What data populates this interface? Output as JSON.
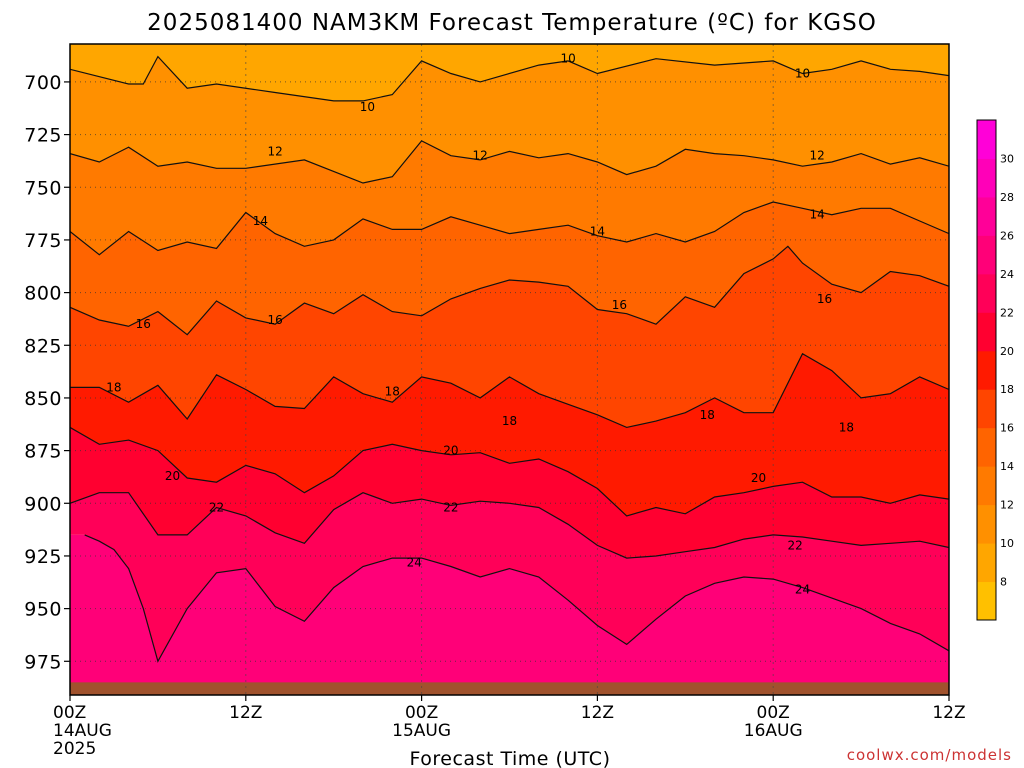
{
  "chart_data": {
    "type": "heatmap",
    "title": "2025081400 NAM3KM Forecast Temperature (ºC) for KGSO",
    "xlabel": "Forecast Time (UTC)",
    "ylabel": "",
    "watermark": "coolwx.com/models",
    "x_ticks": [
      {
        "hour": 0,
        "label": "00Z",
        "sub": "14AUG",
        "sub2": "2025"
      },
      {
        "hour": 12,
        "label": "12Z",
        "sub": "",
        "sub2": ""
      },
      {
        "hour": 24,
        "label": "00Z",
        "sub": "15AUG",
        "sub2": ""
      },
      {
        "hour": 36,
        "label": "12Z",
        "sub": "",
        "sub2": ""
      },
      {
        "hour": 48,
        "label": "00Z",
        "sub": "16AUG",
        "sub2": ""
      },
      {
        "hour": 60,
        "label": "12Z",
        "sub": "",
        "sub2": ""
      }
    ],
    "xlim": [
      0,
      60
    ],
    "y_ticks": [
      700,
      725,
      750,
      775,
      800,
      825,
      850,
      875,
      900,
      925,
      950,
      975
    ],
    "ylim": [
      682,
      991
    ],
    "y_axis_inverted": true,
    "grid": "dotted",
    "ground_color": "#A0522D",
    "colorbar": {
      "placement": "right",
      "bins": [
        {
          "min": 6,
          "max": 8,
          "color": "#FFC000"
        },
        {
          "min": 8,
          "max": 10,
          "color": "#FFA600"
        },
        {
          "min": 10,
          "max": 12,
          "color": "#FF9000"
        },
        {
          "min": 12,
          "max": 14,
          "color": "#FF7A00"
        },
        {
          "min": 14,
          "max": 16,
          "color": "#FF6400"
        },
        {
          "min": 16,
          "max": 18,
          "color": "#FF4500"
        },
        {
          "min": 18,
          "max": 20,
          "color": "#FF1A00"
        },
        {
          "min": 20,
          "max": 22,
          "color": "#FF0030"
        },
        {
          "min": 22,
          "max": 24,
          "color": "#FF0058"
        },
        {
          "min": 24,
          "max": 26,
          "color": "#FF0078"
        },
        {
          "min": 26,
          "max": 28,
          "color": "#FF0098"
        },
        {
          "min": 28,
          "max": 30,
          "color": "#FF00B8"
        },
        {
          "min": 30,
          "max": 32,
          "color": "#FF00D8"
        }
      ],
      "tick_labels": [
        "8",
        "10",
        "12",
        "14",
        "16",
        "18",
        "20",
        "22",
        "24",
        "26",
        "28",
        "30"
      ]
    },
    "contours": [
      {
        "level": 10,
        "hours": [
          0,
          4,
          5,
          6,
          8,
          10,
          14,
          18,
          20,
          22,
          24,
          26,
          28,
          32,
          34,
          36,
          40,
          44,
          48,
          50,
          52,
          54,
          56,
          58,
          60
        ],
        "pressures": [
          694,
          701,
          701,
          688,
          703,
          701,
          705,
          709,
          709,
          706,
          690,
          696,
          700,
          692,
          690,
          696,
          689,
          692,
          690,
          696,
          694,
          690,
          694,
          695,
          697
        ],
        "labels": [
          [
            20.3,
            712
          ],
          [
            34,
            689
          ],
          [
            50,
            696
          ]
        ]
      },
      {
        "level": 12,
        "hours": [
          0,
          2,
          4,
          6,
          8,
          10,
          12,
          16,
          20,
          22,
          24,
          26,
          28,
          30,
          32,
          34,
          36,
          38,
          40,
          42,
          44,
          46,
          48,
          50,
          52,
          54,
          56,
          58,
          60
        ],
        "pressures": [
          734,
          738,
          731,
          740,
          738,
          741,
          741,
          737,
          748,
          745,
          728,
          735,
          737,
          733,
          736,
          734,
          738,
          744,
          740,
          732,
          734,
          735,
          737,
          740,
          738,
          734,
          739,
          736,
          740
        ],
        "labels": [
          [
            14,
            733
          ],
          [
            28,
            735
          ],
          [
            51,
            735
          ]
        ]
      },
      {
        "level": 14,
        "hours": [
          0,
          2,
          4,
          6,
          8,
          10,
          12,
          14,
          16,
          18,
          20,
          22,
          24,
          26,
          28,
          30,
          32,
          34,
          36,
          38,
          40,
          42,
          44,
          46,
          48,
          50,
          52,
          54,
          56,
          58,
          60
        ],
        "pressures": [
          771,
          782,
          771,
          780,
          776,
          779,
          762,
          772,
          778,
          775,
          765,
          770,
          770,
          764,
          768,
          772,
          770,
          768,
          773,
          776,
          772,
          776,
          771,
          762,
          757,
          760,
          763,
          760,
          760,
          766,
          772
        ],
        "labels": [
          [
            13,
            766
          ],
          [
            36,
            771
          ],
          [
            51,
            763
          ]
        ]
      },
      {
        "level": 16,
        "hours": [
          0,
          2,
          4,
          6,
          8,
          10,
          12,
          14,
          16,
          18,
          20,
          22,
          24,
          26,
          28,
          30,
          32,
          34,
          36,
          38,
          40,
          42,
          44,
          46,
          48,
          49,
          50,
          52,
          54,
          56,
          58,
          60
        ],
        "pressures": [
          807,
          813,
          816,
          809,
          820,
          804,
          812,
          815,
          805,
          810,
          801,
          809,
          811,
          803,
          798,
          794,
          795,
          797,
          808,
          810,
          815,
          802,
          807,
          791,
          784,
          778,
          786,
          796,
          800,
          790,
          792,
          797
        ],
        "labels": [
          [
            5,
            815
          ],
          [
            14,
            813
          ],
          [
            37.5,
            806
          ],
          [
            51.5,
            803
          ]
        ]
      },
      {
        "level": 18,
        "hours": [
          0,
          2,
          4,
          6,
          8,
          10,
          12,
          14,
          16,
          18,
          20,
          22,
          24,
          26,
          28,
          30,
          32,
          34,
          36,
          38,
          40,
          42,
          44,
          46,
          48,
          50,
          52,
          54,
          56,
          58,
          60
        ],
        "pressures": [
          845,
          845,
          852,
          844,
          860,
          839,
          846,
          854,
          855,
          840,
          848,
          852,
          840,
          843,
          850,
          840,
          848,
          853,
          858,
          864,
          861,
          857,
          850,
          857,
          857,
          829,
          837,
          850,
          848,
          840,
          846
        ],
        "labels": [
          [
            3,
            845
          ],
          [
            22,
            847
          ],
          [
            30,
            861
          ],
          [
            43.5,
            858
          ],
          [
            53,
            864
          ]
        ]
      },
      {
        "level": 20,
        "hours": [
          0,
          2,
          4,
          6,
          8,
          10,
          12,
          14,
          16,
          18,
          20,
          22,
          24,
          26,
          28,
          30,
          32,
          34,
          36,
          38,
          40,
          42,
          44,
          46,
          48,
          50,
          52,
          54,
          56,
          58,
          60
        ],
        "pressures": [
          864,
          872,
          870,
          875,
          888,
          890,
          882,
          886,
          895,
          887,
          875,
          872,
          875,
          877,
          876,
          881,
          879,
          885,
          893,
          906,
          902,
          905,
          897,
          895,
          892,
          890,
          897,
          897,
          900,
          896,
          898
        ],
        "labels": [
          [
            7,
            887
          ],
          [
            26,
            875
          ],
          [
            47,
            888
          ]
        ]
      },
      {
        "level": 22,
        "hours": [
          0,
          2,
          4,
          6,
          8,
          10,
          12,
          14,
          16,
          18,
          20,
          22,
          24,
          26,
          28,
          30,
          32,
          34,
          36,
          38,
          40,
          42,
          44,
          46,
          48,
          50,
          52,
          54,
          56,
          58,
          60
        ],
        "pressures": [
          900,
          895,
          895,
          915,
          915,
          902,
          906,
          914,
          919,
          903,
          895,
          900,
          898,
          901,
          899,
          900,
          902,
          910,
          920,
          926,
          925,
          923,
          921,
          917,
          915,
          916,
          918,
          920,
          919,
          918,
          921
        ],
        "labels": [
          [
            10,
            902
          ],
          [
            26,
            902
          ],
          [
            49.5,
            920
          ]
        ]
      },
      {
        "level": 24,
        "hours": [
          1,
          2,
          3,
          4,
          5,
          6,
          8,
          10,
          12,
          14,
          16,
          18,
          20,
          22,
          24,
          26,
          28,
          30,
          32,
          34,
          36,
          38,
          40,
          42,
          44,
          46,
          48,
          50,
          52,
          54,
          56,
          58,
          60
        ],
        "pressures": [
          915,
          918,
          922,
          931,
          950,
          975,
          950,
          933,
          931,
          949,
          956,
          940,
          930,
          926,
          926,
          930,
          935,
          931,
          935,
          946,
          958,
          967,
          955,
          944,
          938,
          935,
          936,
          940,
          945,
          950,
          957,
          962,
          970
        ],
        "labels": [
          [
            23.5,
            928
          ],
          [
            50,
            941
          ]
        ]
      }
    ]
  }
}
